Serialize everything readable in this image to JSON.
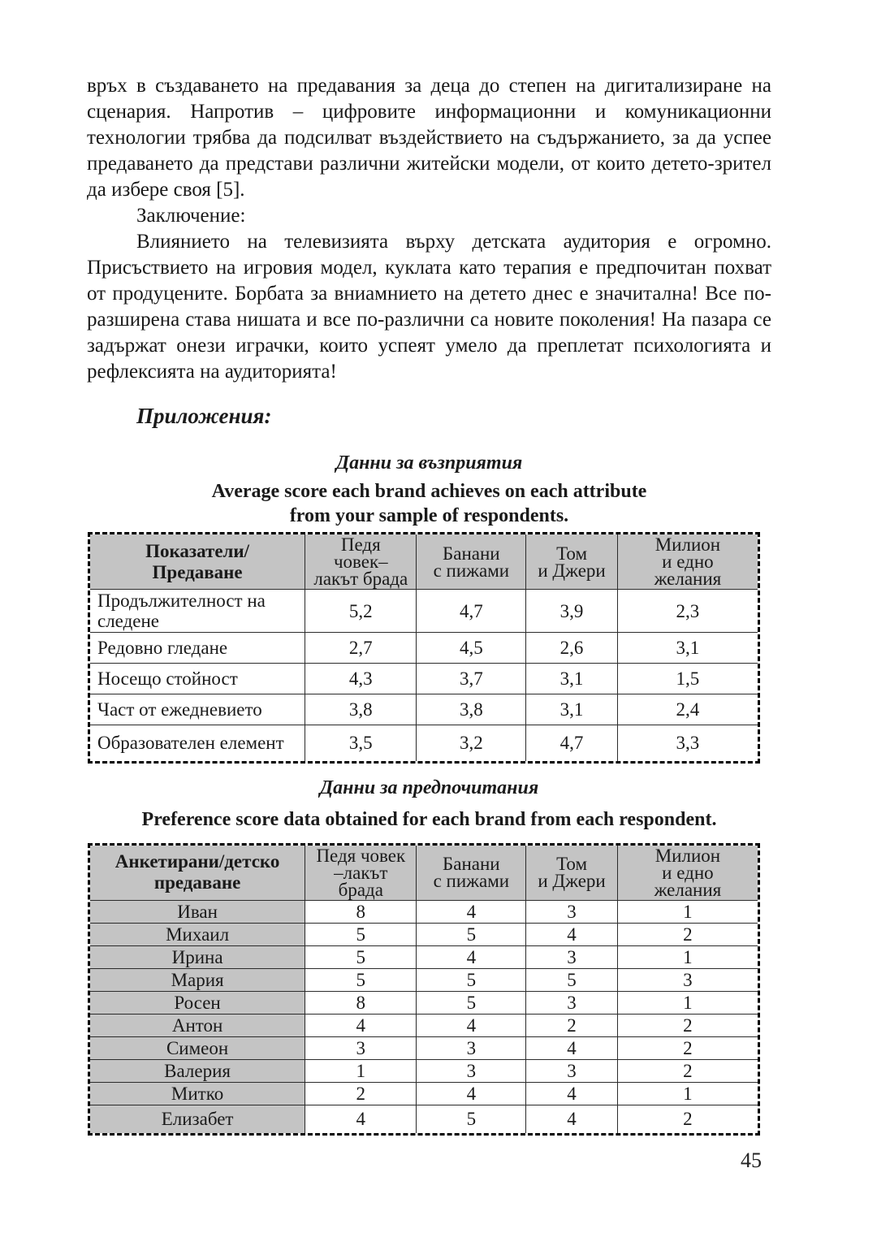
{
  "body": {
    "paragraph1": "връх в създаването на предавания за деца до степен на дигитализиране на сценария. Напротив – цифровите информационни и комуникационни технологии трябва да подсилват въздействието на съдържанието, за да успее предаването да представи различни житейски модели, от които детето-зрител да избере своя [5].",
    "conclusion_label": "Заключение:",
    "paragraph2": "Влиянието на телевизията върху детската аудитория е огромно. Присъствието на игровия модел, куклата като терапия е предпочитан похват от продуцените. Борбата за вниамнието на детето днес е значитална! Все по-разширена става нишата и все по-различни са новите поколения! На пазара се задържат онези играчки, които успеят умело да преплетат психологията и рефлексията на аудиторията!",
    "appendix_label": "Приложения:"
  },
  "table1": {
    "caption_bg": "Данни за възприятия",
    "caption_en_lines": [
      "Average score each brand achieves on each attribute",
      "from your sample of respondents."
    ],
    "header_col0_lines": [
      "Показатели/",
      "Предаване"
    ],
    "col_headers": [
      [
        "Педя",
        "човек–",
        "лакът брада"
      ],
      [
        "Банани",
        "с пижами"
      ],
      [
        "Том",
        "и Джери"
      ],
      [
        "Милион",
        "и едно",
        "желания"
      ]
    ],
    "rows": [
      [
        "Продължителност на следене",
        "5,2",
        "4,7",
        "3,9",
        "2,3"
      ],
      [
        "Редовно гледане",
        "2,7",
        "4,5",
        "2,6",
        "3,1"
      ],
      [
        "Носещо стойност",
        "4,3",
        "3,7",
        "3,1",
        "1,5"
      ],
      [
        "Част от ежедневието",
        "3,8",
        "3,8",
        "3,1",
        "2,4"
      ],
      [
        "Образователен елемент",
        "3,5",
        "3,2",
        "4,7",
        "3,3"
      ]
    ]
  },
  "table2": {
    "caption_bg": "Данни за предпочитания",
    "caption_en_lines": [
      "Preference score data obtained for each brand from each respondent."
    ],
    "header_col0_lines": [
      "Анкетирани/детско",
      "предаване"
    ],
    "col_headers": [
      [
        "Педя човек",
        "–лакът",
        "брада"
      ],
      [
        "Банани",
        "с пижами"
      ],
      [
        "Том",
        "и Джери"
      ],
      [
        "Милион",
        "и едно",
        "желания"
      ]
    ],
    "rows": [
      [
        "Иван",
        "8",
        "4",
        "3",
        "1"
      ],
      [
        "Михаил",
        "5",
        "5",
        "4",
        "2"
      ],
      [
        "Ирина",
        "5",
        "4",
        "3",
        "1"
      ],
      [
        "Мария",
        "5",
        "5",
        "5",
        "3"
      ],
      [
        "Росен",
        "8",
        "5",
        "3",
        "1"
      ],
      [
        "Антон",
        "4",
        "4",
        "2",
        "2"
      ],
      [
        "Симеон",
        "3",
        "3",
        "4",
        "2"
      ],
      [
        "Валерия",
        "1",
        "3",
        "3",
        "2"
      ],
      [
        "Митко",
        "2",
        "4",
        "4",
        "1"
      ],
      [
        "Елизабет",
        "4",
        "5",
        "4",
        "2"
      ]
    ]
  },
  "page_number": "45"
}
